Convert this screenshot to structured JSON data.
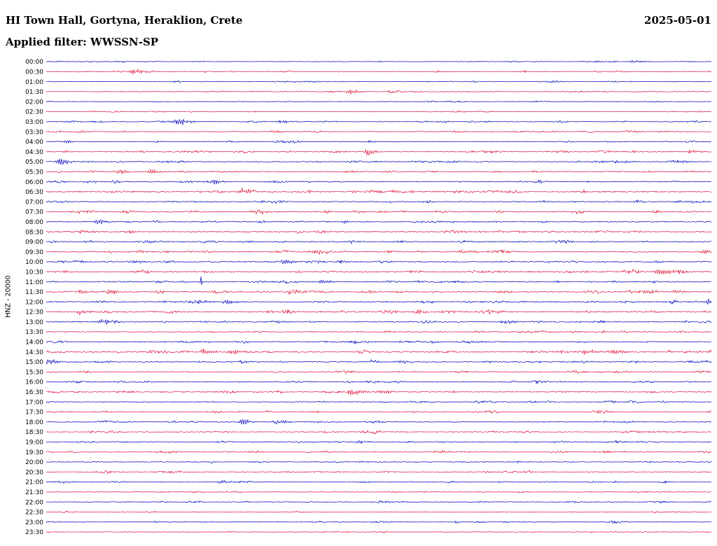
{
  "header": {
    "title": "HI Town Hall, Gortyna, Heraklion, Crete",
    "date": "2025-05-01",
    "filter_label": "Applied filter: WWSSN-SP"
  },
  "y_axis_label": "HNZ - 20000",
  "chart_data": {
    "type": "line",
    "variant": "helicorder-dayplot",
    "title": "HI Town Hall, Gortyna, Heraklion, Crete",
    "date": "2025-05-01",
    "filter": "WWSSN-SP",
    "ylabel": "HNZ - 20000",
    "minutes_per_row": 30,
    "colors": {
      "blue": "#0000BE",
      "red": "#DC143C",
      "text": "#000000"
    },
    "events_encoding": "[position_fraction_along_row, peak_amplitude_px, envelope_width_px]",
    "rows": [
      {
        "time": "00:00",
        "color": "blue",
        "noise": 0.55,
        "events": [
          [
            0.883,
            1.5,
            10
          ]
        ]
      },
      {
        "time": "00:30",
        "color": "red",
        "noise": 0.65,
        "events": [
          [
            0.131,
            3.5,
            10
          ]
        ]
      },
      {
        "time": "01:00",
        "color": "blue",
        "noise": 0.6,
        "events": [
          [
            0.762,
            1.4,
            8
          ]
        ]
      },
      {
        "time": "01:30",
        "color": "red",
        "noise": 0.7,
        "events": [
          [
            0.457,
            3.0,
            9
          ]
        ]
      },
      {
        "time": "02:00",
        "color": "blue",
        "noise": 0.55,
        "events": []
      },
      {
        "time": "02:30",
        "color": "red",
        "noise": 0.6,
        "events": []
      },
      {
        "time": "03:00",
        "color": "blue",
        "noise": 0.7,
        "events": [
          [
            0.199,
            4.0,
            12
          ],
          [
            0.352,
            2.2,
            9
          ]
        ]
      },
      {
        "time": "03:30",
        "color": "red",
        "noise": 0.8,
        "events": [
          [
            0.341,
            1.8,
            8
          ]
        ]
      },
      {
        "time": "04:00",
        "color": "blue",
        "noise": 0.75,
        "events": [
          [
            0.031,
            1.8,
            6
          ]
        ]
      },
      {
        "time": "04:30",
        "color": "red",
        "noise": 0.9,
        "events": [
          [
            0.025,
            2.0,
            6
          ],
          [
            0.483,
            5.0,
            8
          ],
          [
            0.967,
            2.6,
            8
          ]
        ]
      },
      {
        "time": "05:00",
        "color": "blue",
        "noise": 0.85,
        "events": [
          [
            0.02,
            3.8,
            9
          ],
          [
            0.857,
            1.8,
            14
          ],
          [
            0.949,
            2.6,
            9
          ]
        ]
      },
      {
        "time": "05:30",
        "color": "red",
        "noise": 0.9,
        "events": [
          [
            0.109,
            3.2,
            8
          ],
          [
            0.157,
            3.2,
            8
          ]
        ]
      },
      {
        "time": "06:00",
        "color": "blue",
        "noise": 0.9,
        "events": [
          [
            0.246,
            3.4,
            10
          ]
        ]
      },
      {
        "time": "06:30",
        "color": "red",
        "noise": 1.25,
        "events": [
          [
            0.294,
            4.2,
            8
          ]
        ]
      },
      {
        "time": "07:00",
        "color": "blue",
        "noise": 1.0,
        "events": [
          [
            0.322,
            1.6,
            8
          ]
        ]
      },
      {
        "time": "07:30",
        "color": "red",
        "noise": 1.05,
        "events": [
          [
            0.057,
            2.8,
            8
          ],
          [
            0.32,
            2.2,
            8
          ]
        ]
      },
      {
        "time": "08:00",
        "color": "blue",
        "noise": 1.0,
        "events": [
          [
            0.078,
            3.2,
            9
          ],
          [
            0.446,
            2.8,
            4
          ]
        ]
      },
      {
        "time": "08:30",
        "color": "red",
        "noise": 1.2,
        "events": [
          [
            0.055,
            3.2,
            8
          ]
        ]
      },
      {
        "time": "09:00",
        "color": "blue",
        "noise": 1.1,
        "events": [
          [
            0.15,
            1.5,
            8
          ]
        ]
      },
      {
        "time": "09:30",
        "color": "red",
        "noise": 1.15,
        "events": [
          [
            0.625,
            2.8,
            8
          ],
          [
            0.988,
            3.5,
            8
          ]
        ]
      },
      {
        "time": "10:00",
        "color": "blue",
        "noise": 1.1,
        "events": [
          [
            0.357,
            2.8,
            8
          ]
        ]
      },
      {
        "time": "10:30",
        "color": "red",
        "noise": 1.15,
        "events": [
          [
            0.809,
            1.8,
            8
          ],
          [
            0.92,
            3.6,
            12
          ]
        ]
      },
      {
        "time": "11:00",
        "color": "blue",
        "noise": 1.0,
        "events": [
          [
            0.231,
            6.5,
            2.5
          ],
          [
            0.415,
            2.2,
            8
          ]
        ]
      },
      {
        "time": "11:30",
        "color": "red",
        "noise": 1.2,
        "events": [
          [
            0.052,
            3.0,
            7
          ],
          [
            0.094,
            3.0,
            7
          ],
          [
            0.899,
            2.8,
            8
          ],
          [
            0.946,
            2.8,
            8
          ]
        ]
      },
      {
        "time": "12:00",
        "color": "blue",
        "noise": 1.1,
        "events": [
          [
            0.225,
            3.8,
            8
          ],
          [
            0.273,
            3.6,
            8
          ],
          [
            0.996,
            4.5,
            5
          ]
        ]
      },
      {
        "time": "12:30",
        "color": "red",
        "noise": 1.3,
        "events": [
          [
            0.052,
            3.8,
            8
          ]
        ]
      },
      {
        "time": "13:00",
        "color": "blue",
        "noise": 1.0,
        "events": [
          [
            0.083,
            2.8,
            8
          ]
        ]
      },
      {
        "time": "13:30",
        "color": "red",
        "noise": 0.95,
        "events": []
      },
      {
        "time": "14:00",
        "color": "blue",
        "noise": 1.0,
        "events": []
      },
      {
        "time": "14:30",
        "color": "red",
        "noise": 1.2,
        "events": [
          [
            0.236,
            3.8,
            9
          ],
          [
            0.28,
            3.8,
            9
          ],
          [
            0.804,
            3.2,
            9
          ],
          [
            0.851,
            3.4,
            9
          ],
          [
            0.999,
            3.8,
            6
          ]
        ]
      },
      {
        "time": "15:00",
        "color": "blue",
        "noise": 1.0,
        "events": [
          [
            0.004,
            3.8,
            7
          ]
        ]
      },
      {
        "time": "15:30",
        "color": "red",
        "noise": 0.9,
        "events": []
      },
      {
        "time": "16:00",
        "color": "blue",
        "noise": 0.9,
        "events": []
      },
      {
        "time": "16:30",
        "color": "red",
        "noise": 0.95,
        "events": [
          [
            0.457,
            3.6,
            9
          ],
          [
            0.504,
            4.0,
            9
          ]
        ]
      },
      {
        "time": "17:00",
        "color": "blue",
        "noise": 0.85,
        "events": []
      },
      {
        "time": "17:30",
        "color": "red",
        "noise": 0.9,
        "events": []
      },
      {
        "time": "18:00",
        "color": "blue",
        "noise": 0.85,
        "events": [
          [
            0.294,
            3.4,
            9
          ],
          [
            0.346,
            3.0,
            9
          ]
        ]
      },
      {
        "time": "18:30",
        "color": "red",
        "noise": 0.8,
        "events": []
      },
      {
        "time": "19:00",
        "color": "blue",
        "noise": 0.95,
        "events": []
      },
      {
        "time": "19:30",
        "color": "red",
        "noise": 0.85,
        "events": [
          [
            0.588,
            2.4,
            8
          ]
        ]
      },
      {
        "time": "20:00",
        "color": "blue",
        "noise": 0.7,
        "events": []
      },
      {
        "time": "20:30",
        "color": "red",
        "noise": 0.75,
        "events": []
      },
      {
        "time": "21:00",
        "color": "blue",
        "noise": 0.7,
        "events": [
          [
            0.262,
            2.4,
            8
          ]
        ]
      },
      {
        "time": "21:30",
        "color": "red",
        "noise": 0.65,
        "events": []
      },
      {
        "time": "22:00",
        "color": "blue",
        "noise": 0.7,
        "events": []
      },
      {
        "time": "22:30",
        "color": "red",
        "noise": 0.6,
        "events": []
      },
      {
        "time": "23:00",
        "color": "blue",
        "noise": 0.65,
        "events": []
      },
      {
        "time": "23:30",
        "color": "red",
        "noise": 0.6,
        "events": []
      }
    ]
  }
}
